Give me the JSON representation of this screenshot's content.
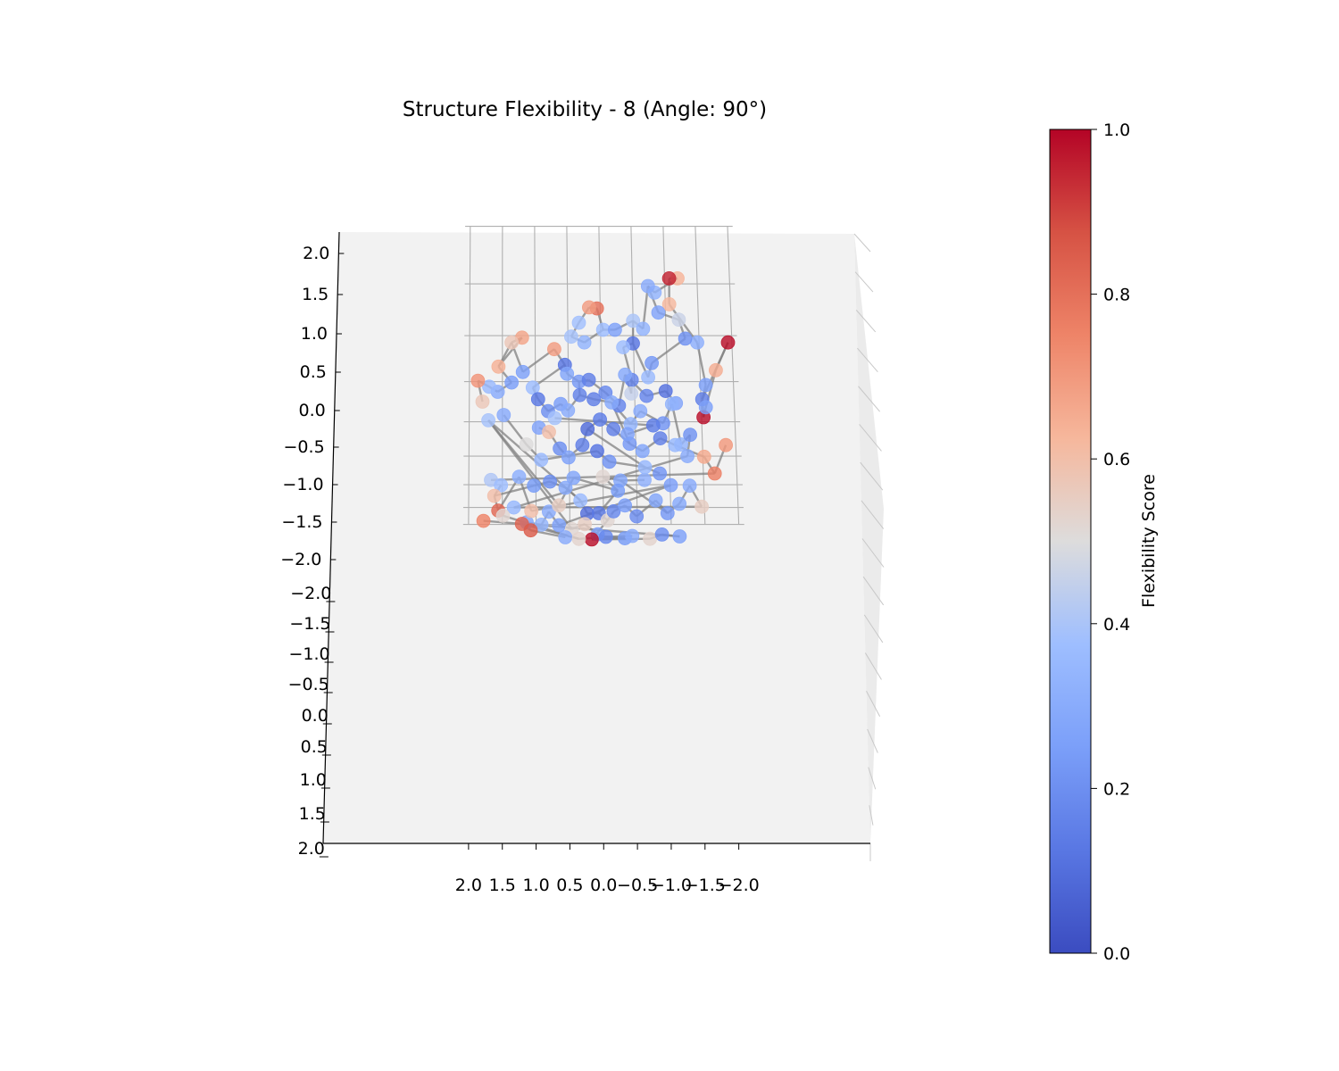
{
  "chart_data": {
    "type": "scatter",
    "projection": "3d",
    "title": "Structure Flexibility - 8 (Angle: 90°)",
    "view_elevation_deg": 90,
    "grid": true,
    "x_ticks": [
      "2.0",
      "1.5",
      "1.0",
      "0.5",
      "0.0",
      "−0.5",
      "−1.0",
      "−1.5",
      "−2.0"
    ],
    "y_ticks_upper": [
      "2.0",
      "1.5",
      "1.0",
      "0.5",
      "0.0",
      "−0.5",
      "−1.0",
      "−1.5",
      "−2.0"
    ],
    "y_ticks_lower": [
      "−2.0",
      "−1.5",
      "−1.0",
      "−0.5",
      "0.0",
      "0.5",
      "1.0",
      "1.5",
      "2.0"
    ],
    "xlim": [
      -2.0,
      2.0
    ],
    "ylim": [
      -2.0,
      2.0
    ],
    "colorbar": {
      "label": "Flexibility Score",
      "colormap": "coolwarm",
      "range": [
        0.0,
        1.0
      ],
      "ticks": [
        "0.0",
        "0.2",
        "0.4",
        "0.6",
        "0.8",
        "1.0"
      ]
    },
    "bond_color": "#808080",
    "nodes": [
      [
        -1.2,
        1.55,
        0.63
      ],
      [
        -1.07,
        1.55,
        0.95
      ],
      [
        -1.06,
        1.31,
        0.62
      ],
      [
        -1.47,
        0.93,
        0.31
      ],
      [
        -1.58,
        0.46,
        0.26
      ],
      [
        -1.52,
        0.29,
        0.15
      ],
      [
        -1.53,
        0.06,
        0.98
      ],
      [
        -1.57,
        0.19,
        0.26
      ],
      [
        -1.74,
        0.63,
        0.65
      ],
      [
        -1.94,
        0.93,
        0.98
      ],
      [
        -0.84,
        1.42,
        0.33
      ],
      [
        -0.74,
        1.48,
        0.3
      ],
      [
        -0.89,
        1.23,
        0.27
      ],
      [
        -1.2,
        1.16,
        0.46
      ],
      [
        -1.29,
        0.97,
        0.21
      ],
      [
        -0.77,
        0.71,
        0.23
      ],
      [
        -0.71,
        0.55,
        0.36
      ],
      [
        -0.49,
        0.92,
        0.12
      ],
      [
        -0.34,
        0.88,
        0.37
      ],
      [
        -0.46,
        0.52,
        0.17
      ],
      [
        -0.45,
        0.36,
        0.45
      ],
      [
        0.05,
        1.27,
        0.8
      ],
      [
        0.17,
        1.28,
        0.69
      ],
      [
        0.33,
        1.13,
        0.38
      ],
      [
        0.45,
        0.99,
        0.39
      ],
      [
        0.25,
        0.93,
        0.33
      ],
      [
        -0.04,
        1.06,
        0.37
      ],
      [
        -0.22,
        1.06,
        0.26
      ],
      [
        -0.5,
        1.15,
        0.4
      ],
      [
        -0.65,
        1.07,
        0.33
      ],
      [
        1.2,
        0.98,
        0.67
      ],
      [
        1.36,
        0.93,
        0.57
      ],
      [
        1.56,
        0.67,
        0.64
      ],
      [
        1.36,
        0.49,
        0.25
      ],
      [
        1.57,
        0.38,
        0.3
      ],
      [
        1.7,
        0.44,
        0.36
      ],
      [
        1.87,
        0.51,
        0.71
      ],
      [
        1.8,
        0.26,
        0.57
      ],
      [
        1.19,
        0.61,
        0.26
      ],
      [
        0.71,
        0.86,
        0.69
      ],
      [
        0.55,
        0.69,
        0.12
      ],
      [
        0.52,
        0.59,
        0.28
      ],
      [
        0.34,
        0.5,
        0.23
      ],
      [
        0.19,
        0.52,
        0.15
      ],
      [
        -0.06,
        0.37,
        0.18
      ],
      [
        -0.26,
        0.21,
        0.17
      ],
      [
        -0.36,
        0.58,
        0.29
      ],
      [
        -0.68,
        0.33,
        0.17
      ],
      [
        -0.97,
        0.39,
        0.11
      ],
      [
        -1.12,
        0.24,
        0.27
      ],
      [
        1.04,
        0.43,
        0.37
      ],
      [
        0.96,
        0.29,
        0.13
      ],
      [
        0.81,
        0.14,
        0.2
      ],
      [
        0.62,
        0.23,
        0.25
      ],
      [
        0.51,
        0.15,
        0.3
      ],
      [
        0.33,
        0.34,
        0.16
      ],
      [
        0.12,
        0.29,
        0.15
      ],
      [
        -0.15,
        0.25,
        0.29
      ],
      [
        -0.43,
        -0.03,
        0.34
      ],
      [
        -0.58,
        0.14,
        0.3
      ],
      [
        -0.92,
        -0.02,
        0.22
      ],
      [
        -1.06,
        0.23,
        0.33
      ],
      [
        -1.18,
        -0.32,
        0.34
      ],
      [
        -1.32,
        -0.18,
        0.21
      ],
      [
        -1.27,
        -0.5,
        0.3
      ],
      [
        0.95,
        -0.08,
        0.27
      ],
      [
        0.8,
        -0.14,
        0.6
      ],
      [
        0.64,
        -0.38,
        0.2
      ],
      [
        0.51,
        -0.52,
        0.26
      ],
      [
        0.3,
        -0.33,
        0.15
      ],
      [
        0.22,
        -0.1,
        0.09
      ],
      [
        0.03,
        0.03,
        0.14
      ],
      [
        -0.17,
        -0.1,
        0.15
      ],
      [
        -0.41,
        -0.31,
        0.23
      ],
      [
        -0.6,
        -0.42,
        0.28
      ],
      [
        -0.87,
        -0.23,
        0.15
      ],
      [
        -1.09,
        -0.33,
        0.35
      ],
      [
        -1.52,
        -0.51,
        0.66
      ],
      [
        -1.67,
        -0.79,
        0.76
      ],
      [
        -1.85,
        -0.33,
        0.7
      ],
      [
        1.67,
        -0.91,
        0.41
      ],
      [
        1.52,
        -1.01,
        0.37
      ],
      [
        1.62,
        -1.23,
        0.6
      ],
      [
        1.56,
        -1.58,
        0.82
      ],
      [
        1.25,
        -0.85,
        0.31
      ],
      [
        1.03,
        -1.02,
        0.24
      ],
      [
        0.79,
        -0.94,
        0.2
      ],
      [
        0.56,
        -1.06,
        0.29
      ],
      [
        0.34,
        -1.33,
        0.36
      ],
      [
        0.24,
        -1.66,
        0.1
      ],
      [
        0.07,
        -1.65,
        0.13
      ],
      [
        -0.06,
        -1.86,
        0.52
      ],
      [
        -0.15,
        -1.6,
        0.18
      ],
      [
        -0.32,
        -1.45,
        0.25
      ],
      [
        -0.49,
        -1.74,
        0.19
      ],
      [
        -0.78,
        -1.33,
        0.28
      ],
      [
        -0.95,
        -1.65,
        0.23
      ],
      [
        -1.13,
        -1.41,
        0.29
      ],
      [
        -1.29,
        -1.02,
        0.3
      ],
      [
        -1.46,
        -1.48,
        0.55
      ],
      [
        1.33,
        -1.5,
        0.35
      ],
      [
        1.14,
        -1.93,
        0.28
      ],
      [
        0.92,
        -2.01,
        0.34
      ],
      [
        0.81,
        -1.61,
        0.3
      ],
      [
        0.66,
        -2.03,
        0.26
      ],
      [
        0.47,
        -2.18,
        0.52
      ],
      [
        0.28,
        -1.99,
        0.55
      ],
      [
        0.09,
        -2.43,
        0.26
      ],
      [
        -0.03,
        -2.58,
        0.18
      ],
      [
        -0.31,
        -2.69,
        0.24
      ],
      [
        0.18,
        -2.79,
        0.98
      ],
      [
        -0.42,
        -2.52,
        0.3
      ],
      [
        -0.68,
        -2.73,
        0.53
      ],
      [
        -0.86,
        -2.44,
        0.2
      ],
      [
        -1.12,
        -2.55,
        0.26
      ],
      [
        1.78,
        -1.88,
        0.75
      ],
      [
        1.21,
        -1.98,
        0.83
      ],
      [
        1.08,
        -2.23,
        0.85
      ],
      [
        0.57,
        -2.61,
        0.3
      ],
      [
        0.37,
        -2.74,
        0.53
      ],
      [
        1.49,
        -1.72,
        0.52
      ],
      [
        1.07,
        -1.59,
        0.6
      ],
      [
        -1.01,
        -1.01,
        0.25
      ],
      [
        -0.62,
        -0.91,
        0.32
      ],
      [
        -0.26,
        -0.92,
        0.28
      ],
      [
        0.0,
        -0.85,
        0.52
      ],
      [
        -0.22,
        -1.12,
        0.24
      ],
      [
        0.44,
        -0.87,
        0.28
      ],
      [
        0.66,
        -1.45,
        0.55
      ],
      [
        1.71,
        0.02,
        0.39
      ],
      [
        1.48,
        0.09,
        0.3
      ],
      [
        1.14,
        -0.32,
        0.5
      ],
      [
        0.92,
        -0.56,
        0.36
      ],
      [
        0.08,
        -0.42,
        0.12
      ],
      [
        -0.1,
        -0.59,
        0.21
      ],
      [
        -0.63,
        -0.68,
        0.35
      ],
      [
        -0.85,
        -0.79,
        0.22
      ],
      [
        -0.38,
        -0.17,
        0.26
      ],
      [
        -0.77,
        -0.05,
        0.14
      ],
      [
        0.71,
        0.05,
        0.39
      ]
    ],
    "bonds": [
      [
        0,
        1
      ],
      [
        1,
        2
      ],
      [
        2,
        3
      ],
      [
        3,
        4
      ],
      [
        4,
        5
      ],
      [
        5,
        6
      ],
      [
        6,
        7
      ],
      [
        7,
        8
      ],
      [
        8,
        9
      ],
      [
        0,
        10
      ],
      [
        10,
        11
      ],
      [
        11,
        12
      ],
      [
        12,
        13
      ],
      [
        13,
        14
      ],
      [
        14,
        15
      ],
      [
        15,
        16
      ],
      [
        16,
        17
      ],
      [
        17,
        18
      ],
      [
        18,
        19
      ],
      [
        19,
        20
      ],
      [
        21,
        22
      ],
      [
        22,
        23
      ],
      [
        23,
        24
      ],
      [
        24,
        25
      ],
      [
        25,
        26
      ],
      [
        26,
        27
      ],
      [
        27,
        28
      ],
      [
        28,
        29
      ],
      [
        29,
        11
      ],
      [
        21,
        26
      ],
      [
        30,
        31
      ],
      [
        31,
        32
      ],
      [
        32,
        33
      ],
      [
        33,
        34
      ],
      [
        34,
        35
      ],
      [
        35,
        36
      ],
      [
        36,
        37
      ],
      [
        31,
        38
      ],
      [
        38,
        39
      ],
      [
        39,
        40
      ],
      [
        40,
        41
      ],
      [
        41,
        42
      ],
      [
        42,
        43
      ],
      [
        43,
        44
      ],
      [
        44,
        45
      ],
      [
        45,
        46
      ],
      [
        46,
        47
      ],
      [
        47,
        48
      ],
      [
        48,
        49
      ],
      [
        50,
        51
      ],
      [
        51,
        52
      ],
      [
        52,
        53
      ],
      [
        53,
        54
      ],
      [
        54,
        55
      ],
      [
        55,
        56
      ],
      [
        56,
        57
      ],
      [
        57,
        58
      ],
      [
        58,
        59
      ],
      [
        59,
        60
      ],
      [
        60,
        61
      ],
      [
        61,
        62
      ],
      [
        62,
        63
      ],
      [
        63,
        64
      ],
      [
        65,
        66
      ],
      [
        66,
        67
      ],
      [
        67,
        68
      ],
      [
        68,
        69
      ],
      [
        69,
        70
      ],
      [
        70,
        71
      ],
      [
        71,
        72
      ],
      [
        72,
        73
      ],
      [
        73,
        74
      ],
      [
        74,
        75
      ],
      [
        75,
        76
      ],
      [
        76,
        77
      ],
      [
        77,
        78
      ],
      [
        78,
        79
      ],
      [
        78,
        80
      ],
      [
        81,
        82
      ],
      [
        82,
        83
      ],
      [
        83,
        84
      ],
      [
        82,
        85
      ],
      [
        85,
        86
      ],
      [
        86,
        87
      ],
      [
        87,
        88
      ],
      [
        88,
        89
      ],
      [
        89,
        90
      ],
      [
        90,
        91
      ],
      [
        91,
        92
      ],
      [
        92,
        93
      ],
      [
        93,
        94
      ],
      [
        94,
        95
      ],
      [
        95,
        96
      ],
      [
        96,
        97
      ],
      [
        97,
        98
      ],
      [
        98,
        99
      ],
      [
        99,
        100
      ],
      [
        101,
        102
      ],
      [
        102,
        103
      ],
      [
        103,
        104
      ],
      [
        104,
        105
      ],
      [
        105,
        106
      ],
      [
        106,
        107
      ],
      [
        107,
        108
      ],
      [
        108,
        109
      ],
      [
        109,
        110
      ],
      [
        108,
        111
      ],
      [
        110,
        112
      ],
      [
        112,
        113
      ],
      [
        113,
        114
      ],
      [
        114,
        115
      ],
      [
        116,
        117
      ],
      [
        117,
        118
      ],
      [
        116,
        119
      ],
      [
        119,
        120
      ],
      [
        121,
        122
      ],
      [
        123,
        124
      ],
      [
        124,
        125
      ],
      [
        125,
        126
      ],
      [
        126,
        127
      ],
      [
        127,
        128
      ],
      [
        128,
        129
      ],
      [
        130,
        131
      ],
      [
        131,
        132
      ],
      [
        132,
        133
      ],
      [
        133,
        134
      ],
      [
        134,
        135
      ],
      [
        135,
        136
      ],
      [
        137,
        138
      ],
      [
        138,
        139
      ],
      [
        140,
        141
      ],
      [
        141,
        60
      ],
      [
        20,
        46
      ],
      [
        28,
        17
      ],
      [
        40,
        50
      ],
      [
        42,
        55
      ],
      [
        57,
        73
      ],
      [
        70,
        135
      ],
      [
        88,
        129
      ],
      [
        96,
        124
      ],
      [
        100,
        64
      ],
      [
        32,
        30
      ],
      [
        84,
        121
      ],
      [
        104,
        122
      ],
      [
        105,
        129
      ],
      [
        90,
        126
      ],
      [
        91,
        110
      ],
      [
        119,
        108
      ],
      [
        9,
        5
      ]
    ]
  }
}
